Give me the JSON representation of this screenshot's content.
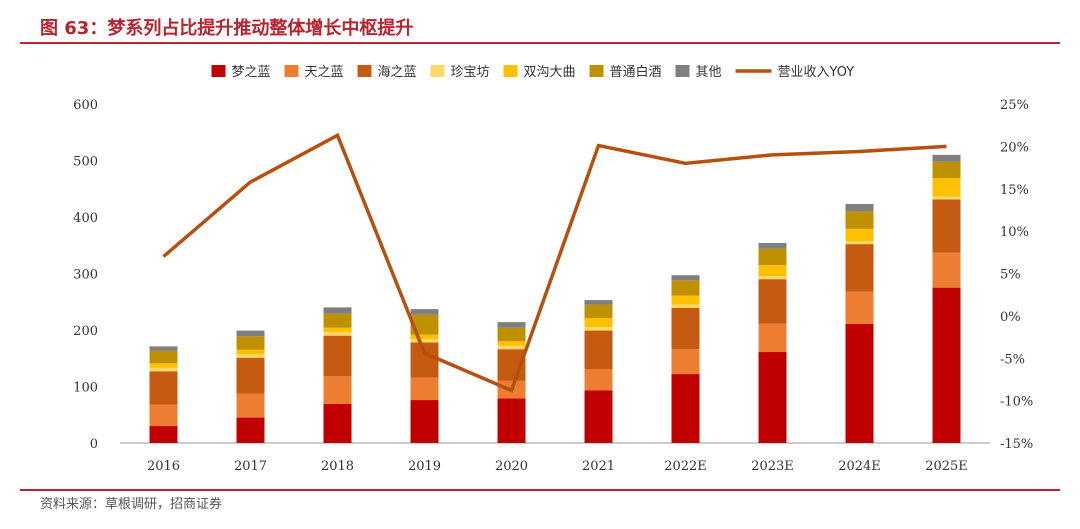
{
  "figure": {
    "title": "图 63：梦系列占比提升推动整体增长中枢提升",
    "source": "资料来源：草根调研，招商证券"
  },
  "chart_data": {
    "type": "bar",
    "stacked": true,
    "title": "梦系列占比提升推动整体增长中枢提升",
    "categories": [
      "2016",
      "2017",
      "2018",
      "2019",
      "2020",
      "2021",
      "2022E",
      "2023E",
      "2024E",
      "2025E"
    ],
    "ylim": [
      0,
      600
    ],
    "yticks": [
      0,
      100,
      200,
      300,
      400,
      500,
      600
    ],
    "y2lim": [
      -15,
      25
    ],
    "y2ticks": [
      -15,
      -10,
      -5,
      0,
      5,
      10,
      15,
      20,
      25
    ],
    "y2tick_labels": [
      "-15%",
      "-10%",
      "-5%",
      "0%",
      "5%",
      "10%",
      "15%",
      "20%",
      "25%"
    ],
    "series": [
      {
        "name": "梦之蓝",
        "color": "#c00000",
        "values": [
          30,
          45,
          69,
          76,
          79,
          93,
          122,
          161,
          211,
          275
        ]
      },
      {
        "name": "天之蓝",
        "color": "#ed7d31",
        "values": [
          38,
          42,
          49,
          40,
          31,
          38,
          44,
          50,
          57,
          62
        ]
      },
      {
        "name": "海之蓝",
        "color": "#c55a11",
        "values": [
          59,
          64,
          72,
          62,
          56,
          68,
          73,
          79,
          84,
          94
        ]
      },
      {
        "name": "珍宝坊",
        "color": "#ffd966",
        "values": [
          6,
          6,
          6,
          6,
          6,
          6,
          6,
          5,
          5,
          5
        ]
      },
      {
        "name": "双沟大曲",
        "color": "#ffc000",
        "values": [
          8,
          8,
          8,
          8,
          8,
          16,
          16,
          20,
          22,
          33
        ]
      },
      {
        "name": "普通白酒",
        "color": "#bf9000",
        "values": [
          22,
          24,
          25,
          35,
          24,
          24,
          27,
          29,
          31,
          29
        ]
      },
      {
        "name": "其他",
        "color": "#7f7f7f",
        "values": [
          8,
          10,
          11,
          10,
          10,
          8,
          9,
          10,
          13,
          12
        ]
      }
    ],
    "line_series": {
      "name": "营业收入YOY",
      "color": "#b5500f",
      "axis": "right",
      "values": [
        7.0,
        15.8,
        21.3,
        -4.4,
        -8.8,
        20.1,
        18.0,
        19.0,
        19.4,
        20.0
      ]
    }
  }
}
